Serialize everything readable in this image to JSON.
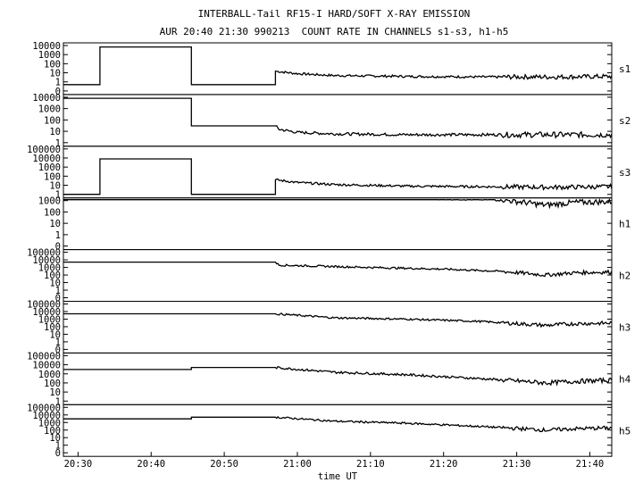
{
  "title": "INTERBALL-Tail RF15-I HARD/SOFT X-RAY EMISSION",
  "subtitle": "AUR 20:40 21:30 990213  COUNT RATE IN CHANNELS s1-s3, h1-h5",
  "chart_data": {
    "type": "line",
    "xlabel": "time UT",
    "x_ticks": [
      "20:30",
      "20:40",
      "20:50",
      "21:00",
      "21:10",
      "21:20",
      "21:30",
      "21:40"
    ],
    "xlim": [
      "20:28",
      "21:43"
    ],
    "y_scale": "log",
    "grid": false,
    "panels": [
      {
        "name": "s1",
        "y_ticks": [
          "10000",
          "1000",
          "100",
          "10",
          "1",
          "0"
        ],
        "ylim": [
          0,
          10000
        ],
        "x": [
          "20:28",
          "20:33",
          "20:33",
          "20:45.5",
          "20:45.5",
          "20:57",
          "20:57",
          "21:00",
          "21:05",
          "21:15",
          "21:25",
          "21:35",
          "21:43"
        ],
        "values": [
          0.5,
          0.5,
          7000,
          7000,
          0.5,
          0.5,
          15,
          8,
          5,
          4,
          3.5,
          3.5,
          4
        ]
      },
      {
        "name": "s2",
        "y_ticks": [
          "10000",
          "1000",
          "100",
          "10",
          "1"
        ],
        "ylim": [
          1,
          10000
        ],
        "x": [
          "20:28",
          "20:45.5",
          "20:45.5",
          "20:57",
          "20:57.5",
          "21:00",
          "21:05",
          "21:15",
          "21:25",
          "21:35",
          "21:43"
        ],
        "values": [
          8000,
          8000,
          30,
          30,
          15,
          8,
          6,
          5,
          5,
          5,
          5
        ]
      },
      {
        "name": "s3",
        "y_ticks": [
          "100000",
          "10000",
          "1000",
          "100",
          "10",
          "1"
        ],
        "ylim": [
          1,
          100000
        ],
        "x": [
          "20:28",
          "20:33",
          "20:33",
          "20:45.5",
          "20:45.5",
          "20:57",
          "20:57",
          "21:00",
          "21:05",
          "21:15",
          "21:25",
          "21:35",
          "21:43"
        ],
        "values": [
          1,
          1,
          8000,
          8000,
          1,
          1,
          40,
          20,
          12,
          8,
          7,
          6,
          7
        ]
      },
      {
        "name": "h1",
        "y_ticks": [
          "1000",
          "100",
          "10",
          "1",
          "0"
        ],
        "ylim": [
          0,
          10000
        ],
        "x": [
          "20:28",
          "20:33",
          "20:33",
          "20:45.5",
          "20:45.5",
          "20:57",
          "21:00",
          "21:10",
          "21:20",
          "21:28",
          "21:34",
          "21:38",
          "21:43"
        ],
        "values": [
          2500,
          2500,
          4000,
          4000,
          1500,
          1500,
          3500,
          2500,
          1500,
          1200,
          400,
          700,
          800
        ]
      },
      {
        "name": "h2",
        "y_ticks": [
          "100000",
          "10000",
          "1000",
          "100",
          "10",
          "1",
          "0"
        ],
        "ylim": [
          0,
          100000
        ],
        "x": [
          "20:28",
          "20:45.5",
          "20:57",
          "20:57.5",
          "21:10",
          "21:20",
          "21:28",
          "21:34",
          "21:38",
          "21:43"
        ],
        "values": [
          5000,
          5000,
          5000,
          2000,
          1000,
          600,
          300,
          100,
          200,
          250
        ]
      },
      {
        "name": "h3",
        "y_ticks": [
          "100000",
          "10000",
          "1000",
          "100",
          "10",
          "1",
          "0"
        ],
        "ylim": [
          0,
          100000
        ],
        "x": [
          "20:28",
          "20:57",
          "21:05",
          "21:15",
          "21:25",
          "21:34",
          "21:38",
          "21:43"
        ],
        "values": [
          5000,
          5000,
          1500,
          1000,
          500,
          150,
          250,
          300
        ]
      },
      {
        "name": "h4",
        "y_ticks": [
          "100000",
          "10000",
          "1000",
          "100",
          "10",
          "1"
        ],
        "ylim": [
          1,
          100000
        ],
        "x": [
          "20:28",
          "20:45.5",
          "20:45.5",
          "20:57",
          "21:05",
          "21:15",
          "21:25",
          "21:34",
          "21:38",
          "21:43"
        ],
        "values": [
          3000,
          3000,
          5000,
          5000,
          1500,
          800,
          300,
          100,
          150,
          200
        ]
      },
      {
        "name": "h5",
        "y_ticks": [
          "100000",
          "10000",
          "1000",
          "100",
          "10",
          "1",
          "0"
        ],
        "ylim": [
          0,
          100000
        ],
        "x": [
          "20:28",
          "20:45.5",
          "20:45.5",
          "20:57",
          "21:05",
          "21:15",
          "21:25",
          "21:34",
          "21:38",
          "21:43"
        ],
        "values": [
          3000,
          3000,
          5000,
          5000,
          1500,
          800,
          300,
          100,
          150,
          200
        ]
      }
    ]
  }
}
